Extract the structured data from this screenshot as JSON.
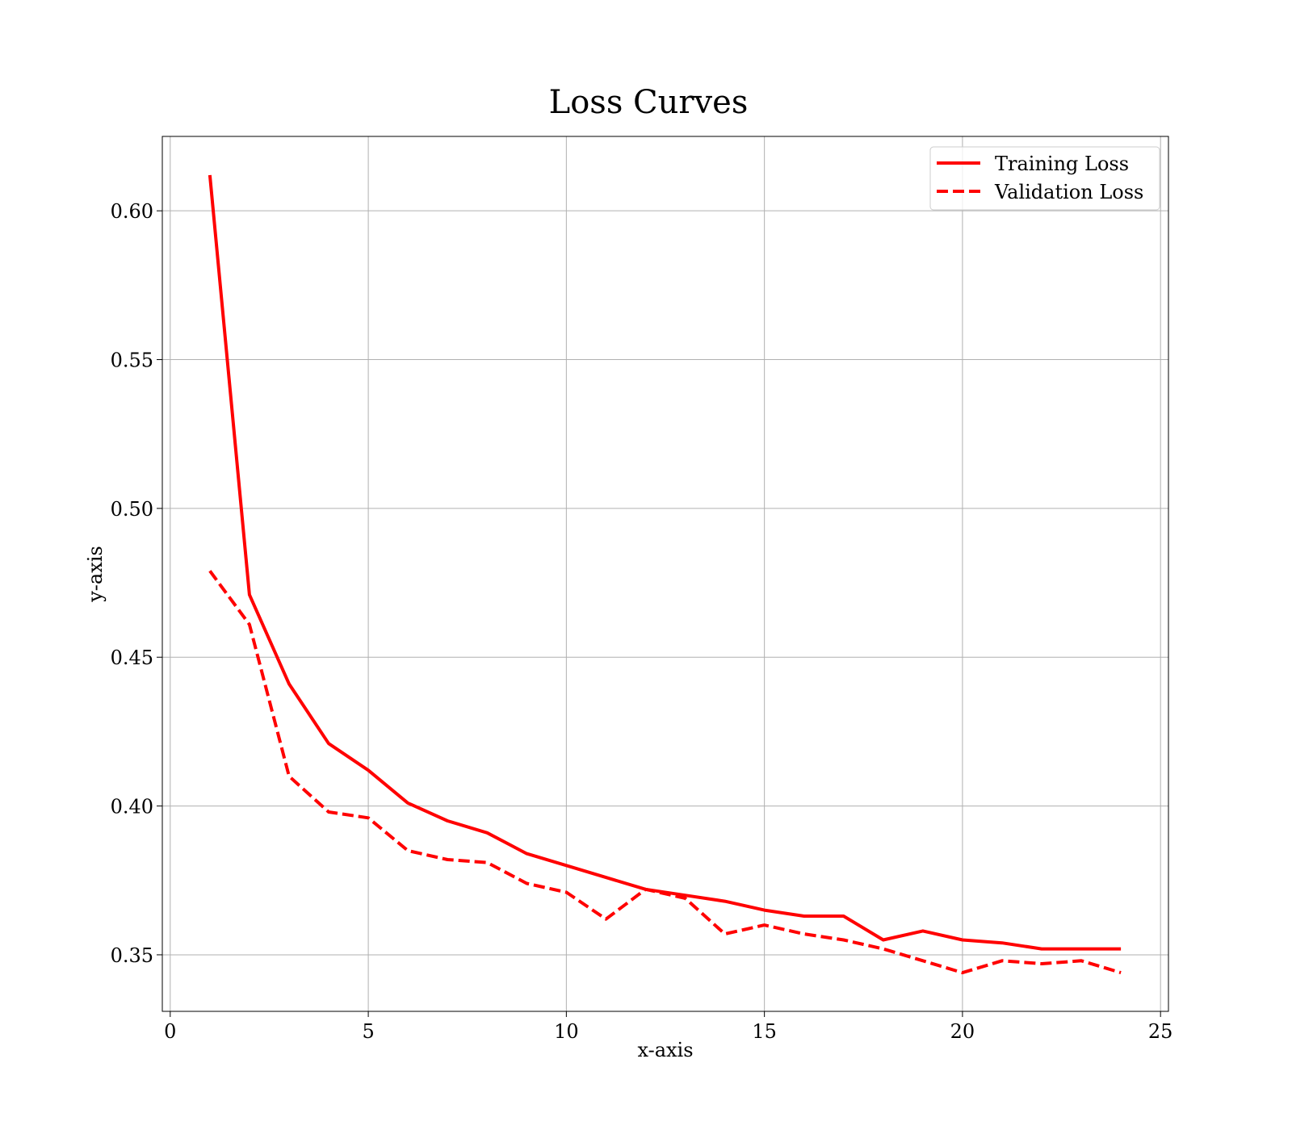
{
  "chart_data": {
    "type": "line",
    "title": "Loss Curves",
    "xlabel": "x-axis",
    "ylabel": "y-axis",
    "xlim": [
      -0.2,
      25.2
    ],
    "ylim": [
      0.331,
      0.625
    ],
    "xticks": [
      0,
      5,
      10,
      15,
      20,
      25
    ],
    "yticks": [
      0.35,
      0.4,
      0.45,
      0.5,
      0.55,
      0.6
    ],
    "xtick_labels": [
      "0",
      "5",
      "10",
      "15",
      "20",
      "25"
    ],
    "ytick_labels": [
      "0.35",
      "0.40",
      "0.45",
      "0.50",
      "0.55",
      "0.60"
    ],
    "grid": true,
    "legend_position": "top-right",
    "x": [
      1,
      2,
      3,
      4,
      5,
      6,
      7,
      8,
      9,
      10,
      11,
      12,
      13,
      14,
      15,
      16,
      17,
      18,
      19,
      20,
      21,
      22,
      23,
      24
    ],
    "series": [
      {
        "name": "Training Loss",
        "style": "solid",
        "color": "#ff0000",
        "values": [
          0.612,
          0.471,
          0.441,
          0.421,
          0.412,
          0.401,
          0.395,
          0.391,
          0.384,
          0.38,
          0.376,
          0.372,
          0.37,
          0.368,
          0.365,
          0.363,
          0.363,
          0.355,
          0.358,
          0.355,
          0.354,
          0.352,
          0.352,
          0.352
        ]
      },
      {
        "name": "Validation Loss",
        "style": "dashed",
        "color": "#ff0000",
        "values": [
          0.479,
          0.461,
          0.41,
          0.398,
          0.396,
          0.385,
          0.382,
          0.381,
          0.374,
          0.371,
          0.362,
          0.372,
          0.369,
          0.357,
          0.36,
          0.357,
          0.355,
          0.352,
          0.348,
          0.344,
          0.348,
          0.347,
          0.348,
          0.344
        ]
      }
    ]
  }
}
